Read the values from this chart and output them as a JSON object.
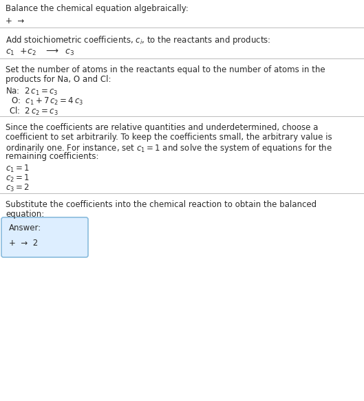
{
  "title": "Balance the chemical equation algebraically:",
  "line1": "+  →",
  "section1_header": "Add stoichiometric coefficients, $c_i$, to the reactants and products:",
  "section2_header_l1": "Set the number of atoms in the reactants equal to the number of atoms in the",
  "section2_header_l2": "products for Na, O and Cl:",
  "section3_header_l1": "Since the coefficients are relative quantities and underdetermined, choose a",
  "section3_header_l2": "coefficient to set arbitrarily. To keep the coefficients small, the arbitrary value is",
  "section3_header_l3": "ordinarily one. For instance, set $c_1 = 1$ and solve the system of equations for the",
  "section3_header_l4": "remaining coefficients:",
  "section4_header_l1": "Substitute the coefficients into the chemical reaction to obtain the balanced",
  "section4_header_l2": "equation:",
  "answer_label": "Answer:",
  "answer_eq": "+  →  2",
  "bg_color": "#ffffff",
  "text_color": "#2a2a2a",
  "box_bg": "#ddeeff",
  "box_border": "#88bbdd",
  "separator_color": "#bbbbbb",
  "fs": 8.5
}
